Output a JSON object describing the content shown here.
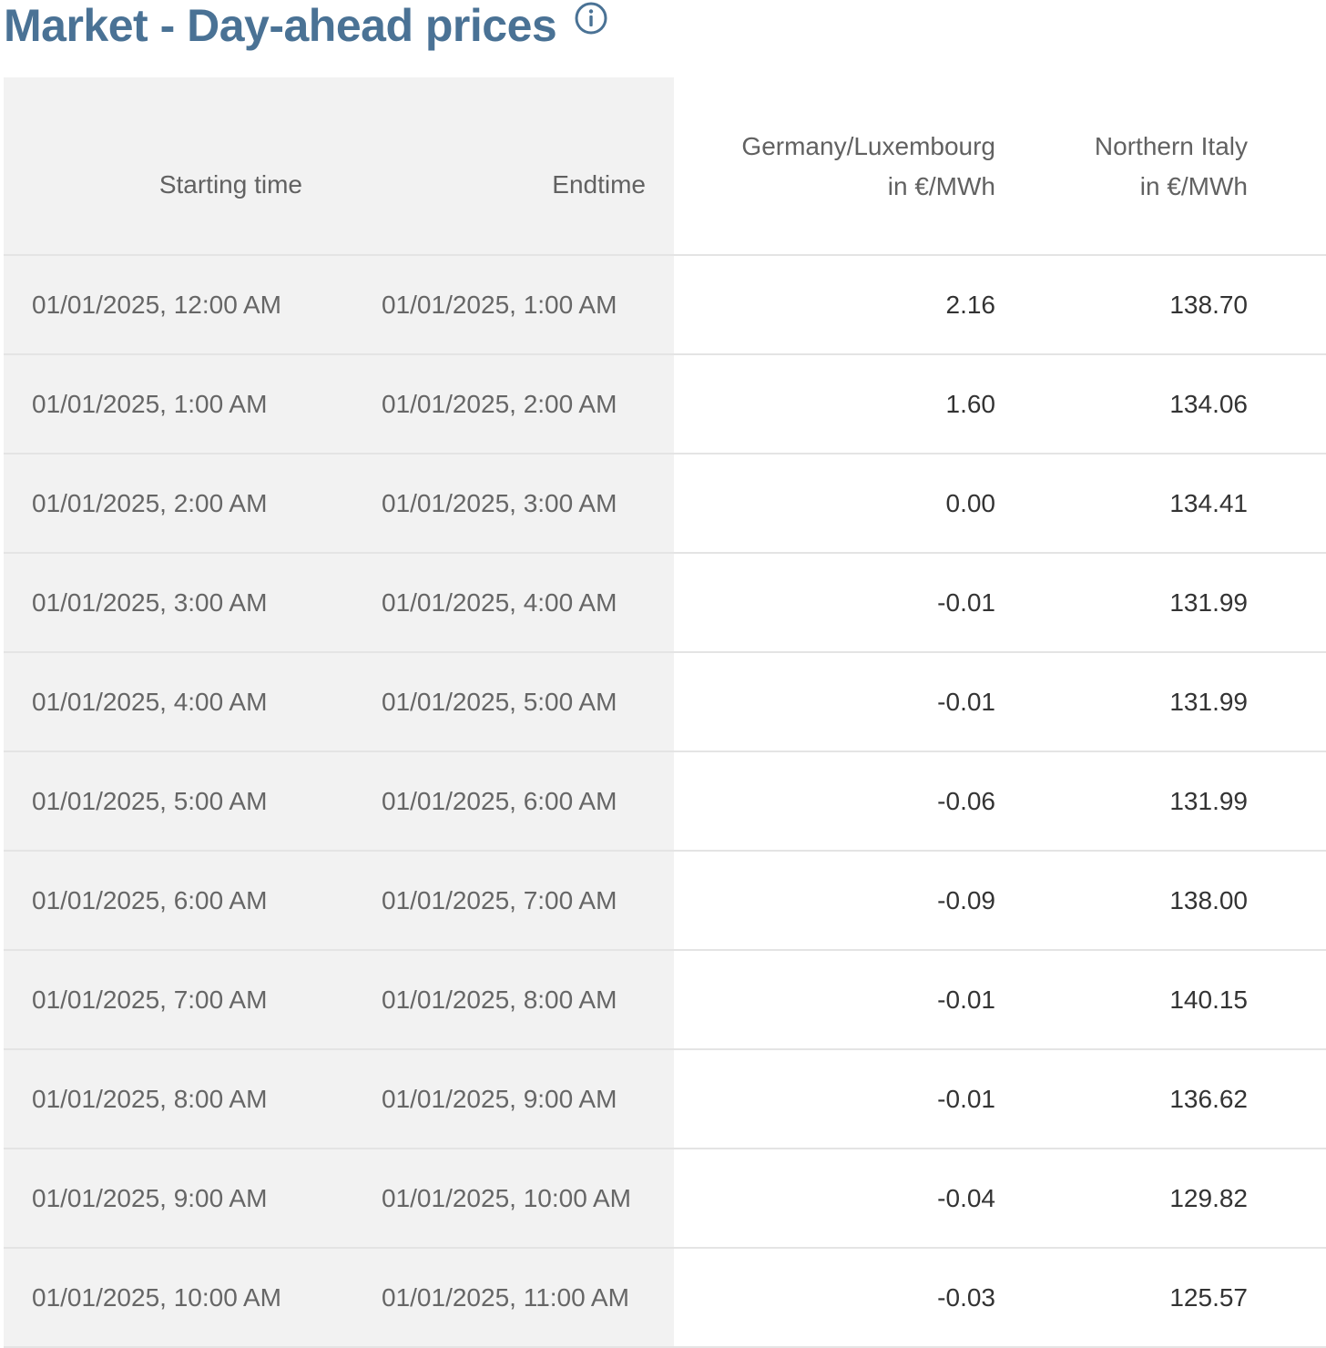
{
  "page": {
    "title": "Market - Day-ahead prices",
    "info_icon": "info-circle-icon",
    "accent_color": "#4a7295"
  },
  "table": {
    "headers": {
      "start": "Starting time",
      "end": "Endtime",
      "de_lu_line1": "Germany/Luxembourg",
      "de_lu_line2": "in €/MWh",
      "it_north_line1": "Northern Italy",
      "it_north_line2": "in €/MWh"
    },
    "rows": [
      {
        "start": "01/01/2025, 12:00 AM",
        "end": "01/01/2025, 1:00 AM",
        "de_lu": "2.16",
        "it_north": "138.70"
      },
      {
        "start": "01/01/2025, 1:00 AM",
        "end": "01/01/2025, 2:00 AM",
        "de_lu": "1.60",
        "it_north": "134.06"
      },
      {
        "start": "01/01/2025, 2:00 AM",
        "end": "01/01/2025, 3:00 AM",
        "de_lu": "0.00",
        "it_north": "134.41"
      },
      {
        "start": "01/01/2025, 3:00 AM",
        "end": "01/01/2025, 4:00 AM",
        "de_lu": "-0.01",
        "it_north": "131.99"
      },
      {
        "start": "01/01/2025, 4:00 AM",
        "end": "01/01/2025, 5:00 AM",
        "de_lu": "-0.01",
        "it_north": "131.99"
      },
      {
        "start": "01/01/2025, 5:00 AM",
        "end": "01/01/2025, 6:00 AM",
        "de_lu": "-0.06",
        "it_north": "131.99"
      },
      {
        "start": "01/01/2025, 6:00 AM",
        "end": "01/01/2025, 7:00 AM",
        "de_lu": "-0.09",
        "it_north": "138.00"
      },
      {
        "start": "01/01/2025, 7:00 AM",
        "end": "01/01/2025, 8:00 AM",
        "de_lu": "-0.01",
        "it_north": "140.15"
      },
      {
        "start": "01/01/2025, 8:00 AM",
        "end": "01/01/2025, 9:00 AM",
        "de_lu": "-0.01",
        "it_north": "136.62"
      },
      {
        "start": "01/01/2025, 9:00 AM",
        "end": "01/01/2025, 10:00 AM",
        "de_lu": "-0.04",
        "it_north": "129.82"
      },
      {
        "start": "01/01/2025, 10:00 AM",
        "end": "01/01/2025, 11:00 AM",
        "de_lu": "-0.03",
        "it_north": "125.57"
      }
    ]
  }
}
